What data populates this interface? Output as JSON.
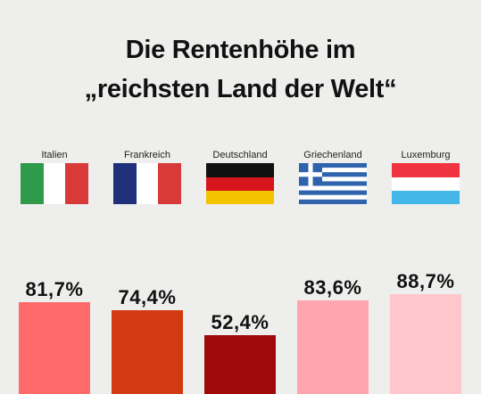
{
  "title": {
    "line1": "Die Rentenhöhe im",
    "line2": "„reichsten Land der Welt“"
  },
  "chart_data": {
    "type": "bar",
    "title": "Die Rentenhöhe im „reichsten Land der Welt“",
    "categories": [
      "Italien",
      "Frankreich",
      "Deutschland",
      "Griechenland",
      "Luxemburg"
    ],
    "values": [
      81.7,
      74.4,
      52.4,
      83.6,
      88.7
    ],
    "value_labels": [
      "81,7%",
      "74,4%",
      "52,4%",
      "83,6%",
      "88,7%"
    ],
    "unit": "%",
    "bar_colors": [
      "#ff6b6b",
      "#d23a12",
      "#9e0a0a",
      "#ffa5b0",
      "#ffc6cc"
    ],
    "flags": [
      "italy-flag",
      "france-flag",
      "germany-flag",
      "greece-flag",
      "luxembourg-flag"
    ]
  }
}
